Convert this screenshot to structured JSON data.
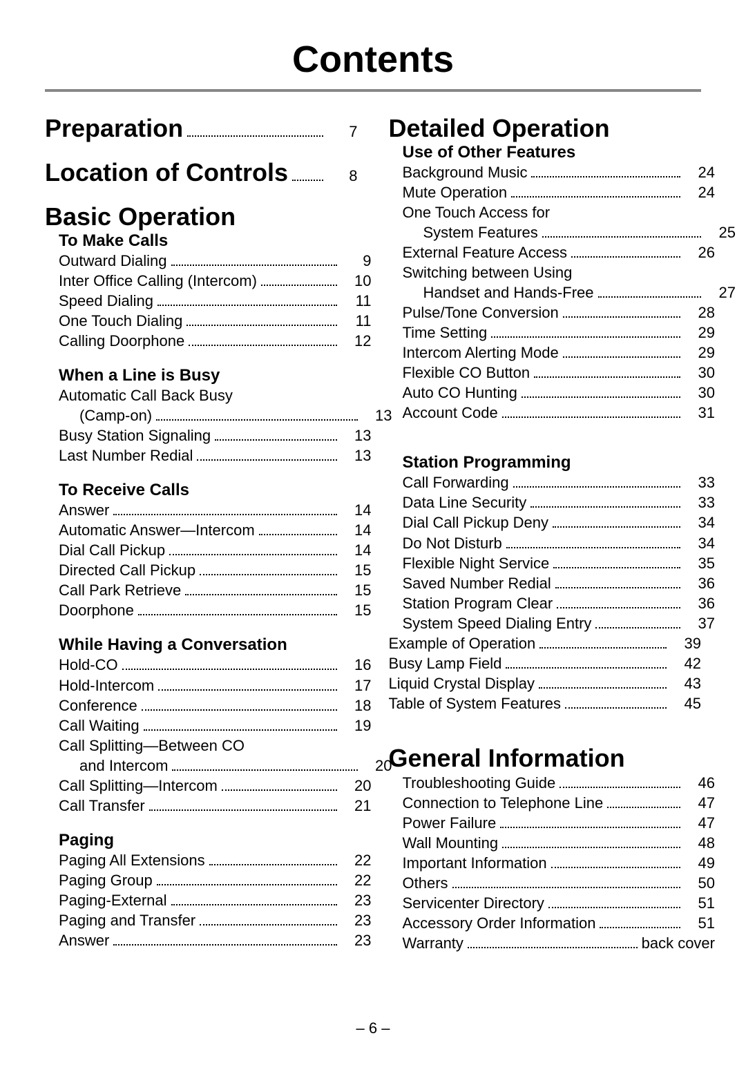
{
  "title": "Contents",
  "page_number": "– 6 –",
  "colors": {
    "background": "#ffffff",
    "text": "#000000",
    "rule": "#888888"
  },
  "fonts": {
    "title_pt": 54,
    "heading_pt": 36,
    "subheading_pt": 24,
    "entry_pt": 22
  },
  "left": {
    "preparation": {
      "label": "Preparation",
      "page": "7"
    },
    "location_controls": {
      "label": "Location of Controls",
      "page": "8"
    },
    "basic_operation": {
      "label": "Basic Operation"
    },
    "to_make_calls": {
      "label": "To Make Calls",
      "items": [
        {
          "label": "Outward Dialing",
          "page": "9"
        },
        {
          "label": "Inter Office Calling (Intercom)",
          "page": "10"
        },
        {
          "label": "Speed Dialing",
          "page": "11"
        },
        {
          "label": "One Touch Dialing",
          "page": "11"
        },
        {
          "label": "Calling Doorphone",
          "page": "12"
        }
      ]
    },
    "when_busy": {
      "label": "When a Line is Busy",
      "items": [
        {
          "label": "Automatic Call Back Busy",
          "cont": "(Camp-on)",
          "page": "13"
        },
        {
          "label": "Busy Station Signaling",
          "page": "13"
        },
        {
          "label": "Last Number Redial",
          "page": "13"
        }
      ]
    },
    "to_receive": {
      "label": "To Receive Calls",
      "items": [
        {
          "label": "Answer",
          "page": "14"
        },
        {
          "label": "Automatic Answer—Intercom",
          "page": "14"
        },
        {
          "label": "Dial Call Pickup",
          "page": "14"
        },
        {
          "label": "Directed Call Pickup",
          "page": "15"
        },
        {
          "label": "Call Park Retrieve",
          "page": "15"
        },
        {
          "label": "Doorphone",
          "page": "15"
        }
      ]
    },
    "while_conv": {
      "label": "While Having a Conversation",
      "items": [
        {
          "label": "Hold-CO",
          "page": "16"
        },
        {
          "label": "Hold-Intercom",
          "page": "17"
        },
        {
          "label": "Conference",
          "page": "18"
        },
        {
          "label": "Call Waiting",
          "page": "19"
        },
        {
          "label": "Call Splitting—Between CO",
          "cont": "and Intercom",
          "page": "20"
        },
        {
          "label": "Call Splitting—Intercom",
          "page": "20"
        },
        {
          "label": "Call Transfer",
          "page": "21"
        }
      ]
    },
    "paging": {
      "label": "Paging",
      "items": [
        {
          "label": "Paging All Extensions",
          "page": "22"
        },
        {
          "label": "Paging Group",
          "page": "22"
        },
        {
          "label": "Paging-External",
          "page": "23"
        },
        {
          "label": "Paging and Transfer",
          "page": "23"
        },
        {
          "label": "Answer",
          "page": "23"
        }
      ]
    }
  },
  "right": {
    "detailed_operation": {
      "label": "Detailed Operation"
    },
    "use_other": {
      "label": "Use of Other Features",
      "items": [
        {
          "label": "Background Music",
          "page": "24"
        },
        {
          "label": "Mute Operation",
          "page": "24"
        },
        {
          "label": "One Touch Access for",
          "cont": "System Features",
          "page": "25"
        },
        {
          "label": "External Feature Access",
          "page": "26"
        },
        {
          "label": "Switching between Using",
          "cont": "Handset and Hands-Free",
          "page": "27"
        },
        {
          "label": "Pulse/Tone Conversion",
          "page": "28"
        },
        {
          "label": "Time Setting",
          "page": "29"
        },
        {
          "label": "Intercom Alerting Mode",
          "page": "29"
        },
        {
          "label": "Flexible CO Button",
          "page": "30"
        },
        {
          "label": "Auto CO Hunting",
          "page": "30"
        },
        {
          "label": "Account Code",
          "page": "31"
        }
      ]
    },
    "station_prog": {
      "label": "Station Programming",
      "items": [
        {
          "label": "Call Forwarding",
          "page": "33"
        },
        {
          "label": "Data Line Security",
          "page": "33"
        },
        {
          "label": "Dial Call Pickup Deny",
          "page": "34"
        },
        {
          "label": "Do Not Disturb",
          "page": "34"
        },
        {
          "label": "Flexible Night Service",
          "page": "35"
        },
        {
          "label": "Saved Number Redial",
          "page": "36"
        },
        {
          "label": "Station Program Clear",
          "page": "36"
        },
        {
          "label": "System Speed Dialing Entry",
          "page": "37"
        }
      ],
      "after": [
        {
          "label": "Example of Operation",
          "page": "39"
        },
        {
          "label": "Busy Lamp Field",
          "page": "42"
        },
        {
          "label": "Liquid Crystal Display",
          "page": "43"
        },
        {
          "label": "Table of System Features",
          "page": "45"
        }
      ]
    },
    "general_info": {
      "label": "General Information",
      "items": [
        {
          "label": "Troubleshooting Guide",
          "page": "46"
        },
        {
          "label": "Connection to Telephone Line",
          "page": "47"
        },
        {
          "label": "Power Failure",
          "page": "47"
        },
        {
          "label": "Wall Mounting",
          "page": "48"
        },
        {
          "label": "Important Information",
          "page": "49"
        },
        {
          "label": "Others",
          "page": "50"
        },
        {
          "label": "Servicenter Directory",
          "page": "51"
        },
        {
          "label": "Accessory Order Information",
          "page": "51"
        },
        {
          "label": "Warranty",
          "page": "back cover"
        }
      ]
    }
  }
}
